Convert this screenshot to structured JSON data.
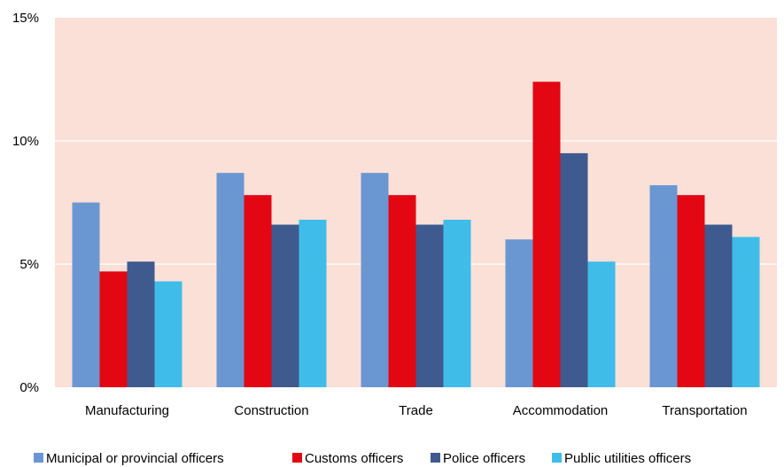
{
  "chart_data": {
    "type": "bar",
    "title": "",
    "xlabel": "",
    "ylabel": "",
    "categories": [
      "Manufacturing",
      "Construction",
      "Trade",
      "Accommodation",
      "Transportation"
    ],
    "ylim": [
      0,
      15
    ],
    "yticks": [
      0,
      5,
      10,
      15
    ],
    "ytick_labels": [
      "0%",
      "5%",
      "10%",
      "15%"
    ],
    "grid": true,
    "legend_position": "bottom",
    "plot_background": "#fbe0d8",
    "series": [
      {
        "name": "Municipal or provincial officers",
        "color": "#6a97d2",
        "values": [
          7.5,
          8.7,
          8.7,
          6.0,
          8.2
        ]
      },
      {
        "name": "Customs officers",
        "color": "#e30613",
        "values": [
          4.7,
          7.8,
          7.8,
          12.4,
          7.8
        ]
      },
      {
        "name": "Police officers",
        "color": "#3f5a8e",
        "values": [
          5.1,
          6.6,
          6.6,
          9.5,
          6.6
        ]
      },
      {
        "name": "Public utilities officers",
        "color": "#3fbde8",
        "values": [
          4.3,
          6.8,
          6.8,
          5.1,
          6.1
        ]
      }
    ]
  }
}
